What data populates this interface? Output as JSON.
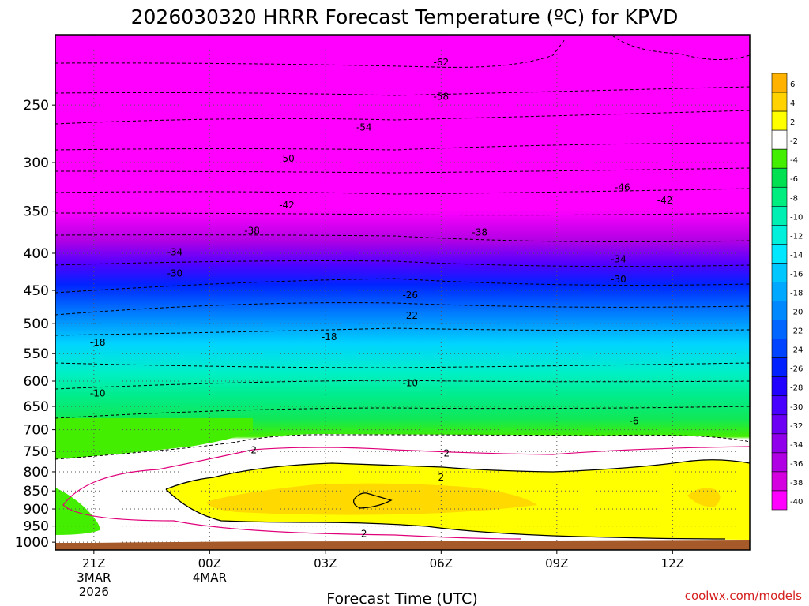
{
  "chart_data": {
    "type": "heatmap",
    "title": "2026030320 HRRR Forecast Temperature (ºC) for KPVD",
    "xlabel": "Forecast Time (UTC)",
    "ylabel": "",
    "credit": "coolwx.com/models",
    "x_ticks": [
      {
        "label": "21Z",
        "sub1": "3MAR",
        "sub2": "2026",
        "hour": 1
      },
      {
        "label": "00Z",
        "sub1": "4MAR",
        "sub2": "",
        "hour": 4
      },
      {
        "label": "03Z",
        "sub1": "",
        "sub2": "",
        "hour": 7
      },
      {
        "label": "06Z",
        "sub1": "",
        "sub2": "",
        "hour": 10
      },
      {
        "label": "09Z",
        "sub1": "",
        "sub2": "",
        "hour": 13
      },
      {
        "label": "12Z",
        "sub1": "",
        "sub2": "",
        "hour": 16
      }
    ],
    "x_range_hours": [
      0,
      18
    ],
    "y_ticks": [
      "250",
      "300",
      "350",
      "400",
      "450",
      "500",
      "550",
      "600",
      "650",
      "700",
      "750",
      "800",
      "850",
      "900",
      "950",
      "1000"
    ],
    "y_axis": "pressure (hPa), log scale",
    "y_range": [
      200,
      1025
    ],
    "colorbar": {
      "labels": [
        "6",
        "4",
        "2",
        "-2",
        "-4",
        "-6",
        "-8",
        "-10",
        "-12",
        "-14",
        "-16",
        "-18",
        "-20",
        "-22",
        "-24",
        "-26",
        "-28",
        "-30",
        "-32",
        "-34",
        "-36",
        "-38",
        "-40"
      ],
      "colors": [
        "#ffb300",
        "#ffd200",
        "#ffff00",
        "#ffffff",
        "#44ee00",
        "#00e050",
        "#00ee80",
        "#00f0b4",
        "#00f0dc",
        "#00e8ff",
        "#00c8ff",
        "#00a8ff",
        "#0088ff",
        "#0066ff",
        "#0044ff",
        "#0020ff",
        "#2000ff",
        "#4800ff",
        "#6c00f4",
        "#9000ea",
        "#b000e4",
        "#d400e0",
        "#ff00ff"
      ]
    },
    "contour_labels": [
      {
        "text": "-62",
        "hour": 10.0,
        "p": 218
      },
      {
        "text": "-58",
        "hour": 10.0,
        "p": 243
      },
      {
        "text": "-54",
        "hour": 8.0,
        "p": 268
      },
      {
        "text": "-50",
        "hour": 6.0,
        "p": 296
      },
      {
        "text": "-46",
        "hour": 14.7,
        "p": 324
      },
      {
        "text": "-42",
        "hour": 6.0,
        "p": 343
      },
      {
        "text": "-42",
        "hour": 15.8,
        "p": 338
      },
      {
        "text": "-38",
        "hour": 5.1,
        "p": 372
      },
      {
        "text": "-38",
        "hour": 11.0,
        "p": 374
      },
      {
        "text": "-34",
        "hour": 3.1,
        "p": 398
      },
      {
        "text": "-34",
        "hour": 14.6,
        "p": 407
      },
      {
        "text": "-30",
        "hour": 3.1,
        "p": 426
      },
      {
        "text": "-30",
        "hour": 14.6,
        "p": 434
      },
      {
        "text": "-26",
        "hour": 9.2,
        "p": 456
      },
      {
        "text": "-22",
        "hour": 9.2,
        "p": 487
      },
      {
        "text": "-18",
        "hour": 1.1,
        "p": 530
      },
      {
        "text": "-18",
        "hour": 7.1,
        "p": 521
      },
      {
        "text": "-10",
        "hour": 1.1,
        "p": 623
      },
      {
        "text": "-10",
        "hour": 9.2,
        "p": 603
      },
      {
        "text": "-6",
        "hour": 15.0,
        "p": 680
      },
      {
        "text": "-2",
        "hour": 5.1,
        "p": 746
      },
      {
        "text": "-2",
        "hour": 10.1,
        "p": 753
      },
      {
        "text": "2",
        "hour": 10.0,
        "p": 813
      },
      {
        "text": "2",
        "hour": 8.0,
        "p": 973
      }
    ]
  }
}
